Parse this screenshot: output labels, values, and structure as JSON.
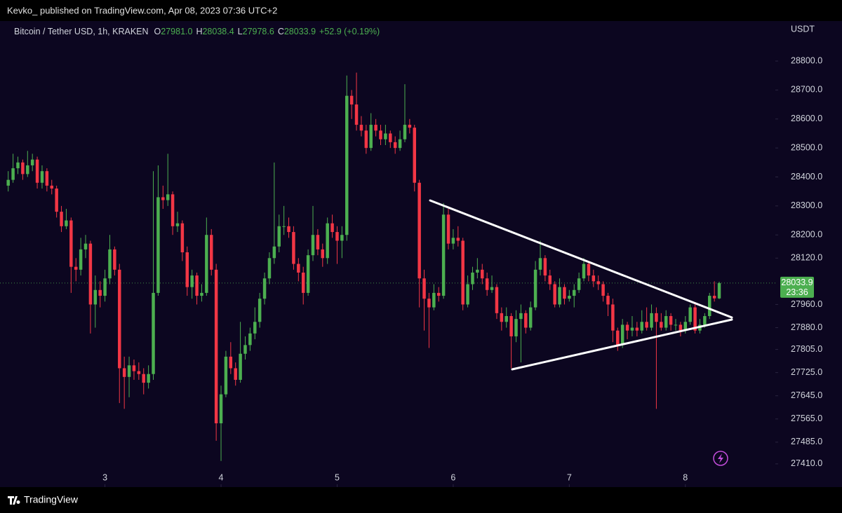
{
  "top_bar": {
    "text": "Kevko_ published on TradingView.com, Apr 08, 2023 07:36 UTC+2"
  },
  "footer": {
    "logo": "TradingView"
  },
  "chart_data": {
    "type": "candlestick",
    "title": "Bitcoin / Tether USD, 1h, KRAKEN",
    "ohlc_header": [
      {
        "key": "O",
        "label": "27981.0"
      },
      {
        "key": "H",
        "label": "28038.4"
      },
      {
        "key": "L",
        "label": "27978.6"
      },
      {
        "key": "C",
        "label": "28033.9"
      }
    ],
    "change": "+52.9 (+0.19%)",
    "currency": "USDT",
    "up_color": "#4caf50",
    "down_color": "#f23645",
    "background": "#0c0620",
    "last_price": 28033.9,
    "countdown": "23:36",
    "xlim": [
      -1.7,
      158.6
    ],
    "xticks": [
      {
        "value": 20,
        "label": "3"
      },
      {
        "value": 44,
        "label": "4"
      },
      {
        "value": 68,
        "label": "5"
      },
      {
        "value": 92,
        "label": "6"
      },
      {
        "value": 116,
        "label": "7"
      },
      {
        "value": 140,
        "label": "8"
      }
    ],
    "ylim": [
      27330,
      28938
    ],
    "yticks": [
      {
        "value": 28800,
        "label": "28800.0"
      },
      {
        "value": 28700,
        "label": "28700.0"
      },
      {
        "value": 28600,
        "label": "28600.0"
      },
      {
        "value": 28500,
        "label": "28500.0"
      },
      {
        "value": 28400,
        "label": "28400.0"
      },
      {
        "value": 28300,
        "label": "28300.0"
      },
      {
        "value": 28200,
        "label": "28200.0"
      },
      {
        "value": 28120,
        "label": "28120.0"
      },
      {
        "value": 27960,
        "label": "27960.0"
      },
      {
        "value": 27880,
        "label": "27880.0"
      },
      {
        "value": 27805,
        "label": "27805.0"
      },
      {
        "value": 27725,
        "label": "27725.0"
      },
      {
        "value": 27645,
        "label": "27645.0"
      },
      {
        "value": 27565,
        "label": "27565.0"
      },
      {
        "value": 27485,
        "label": "27485.0"
      },
      {
        "value": 27410,
        "label": "27410.0"
      }
    ],
    "candles": [
      [
        28370,
        28420,
        28350,
        28390
      ],
      [
        28390,
        28480,
        28380,
        28430
      ],
      [
        28430,
        28470,
        28410,
        28450
      ],
      [
        28450,
        28460,
        28390,
        28410
      ],
      [
        28410,
        28490,
        28400,
        28440
      ],
      [
        28440,
        28480,
        28420,
        28460
      ],
      [
        28460,
        28470,
        28360,
        28380
      ],
      [
        28380,
        28440,
        28360,
        28420
      ],
      [
        28420,
        28430,
        28350,
        28370
      ],
      [
        28370,
        28390,
        28340,
        28360
      ],
      [
        28360,
        28370,
        28260,
        28280
      ],
      [
        28280,
        28300,
        28210,
        28230
      ],
      [
        28230,
        28290,
        28220,
        28250
      ],
      [
        28250,
        28260,
        28000,
        28090
      ],
      [
        28090,
        28120,
        28040,
        28080
      ],
      [
        28080,
        28190,
        28060,
        28150
      ],
      [
        28150,
        28200,
        28120,
        28170
      ],
      [
        28170,
        28180,
        27860,
        27960
      ],
      [
        27960,
        28060,
        27880,
        28010
      ],
      [
        28010,
        28040,
        27950,
        27990
      ],
      [
        27990,
        28080,
        27970,
        28050
      ],
      [
        28050,
        28200,
        28030,
        28150
      ],
      [
        28150,
        28160,
        28060,
        28080
      ],
      [
        28080,
        28100,
        27620,
        27740
      ],
      [
        27740,
        27780,
        27600,
        27710
      ],
      [
        27710,
        27780,
        27640,
        27750
      ],
      [
        27750,
        27770,
        27700,
        27730
      ],
      [
        27730,
        27760,
        27700,
        27720
      ],
      [
        27720,
        27740,
        27650,
        27690
      ],
      [
        27690,
        27750,
        27670,
        27720
      ],
      [
        27720,
        28420,
        27700,
        28000
      ],
      [
        28000,
        28440,
        27990,
        28330
      ],
      [
        28330,
        28370,
        28290,
        28320
      ],
      [
        28320,
        28480,
        28300,
        28340
      ],
      [
        28340,
        28350,
        28200,
        28230
      ],
      [
        28230,
        28280,
        28210,
        28240
      ],
      [
        28240,
        28250,
        28110,
        28140
      ],
      [
        28140,
        28160,
        27990,
        28020
      ],
      [
        28020,
        28080,
        27980,
        28060
      ],
      [
        28060,
        28070,
        27960,
        27990
      ],
      [
        27990,
        28030,
        27970,
        28000
      ],
      [
        28000,
        28260,
        27990,
        28200
      ],
      [
        28200,
        28220,
        28060,
        28080
      ],
      [
        28080,
        28100,
        27490,
        27550
      ],
      [
        27550,
        27680,
        27420,
        27650
      ],
      [
        27650,
        27800,
        27640,
        27780
      ],
      [
        27780,
        27830,
        27720,
        27740
      ],
      [
        27740,
        27760,
        27680,
        27700
      ],
      [
        27700,
        27900,
        27690,
        27790
      ],
      [
        27790,
        27850,
        27770,
        27820
      ],
      [
        27820,
        27880,
        27800,
        27860
      ],
      [
        27860,
        27950,
        27840,
        27900
      ],
      [
        27900,
        28000,
        27880,
        27980
      ],
      [
        27980,
        28070,
        27960,
        28050
      ],
      [
        28050,
        28140,
        28030,
        28120
      ],
      [
        28120,
        28450,
        28100,
        28160
      ],
      [
        28160,
        28270,
        28140,
        28230
      ],
      [
        28230,
        28300,
        28200,
        28230
      ],
      [
        28230,
        28260,
        28190,
        28210
      ],
      [
        28210,
        28230,
        28080,
        28100
      ],
      [
        28100,
        28120,
        28040,
        28070
      ],
      [
        28070,
        28090,
        27960,
        28000
      ],
      [
        28000,
        28150,
        27990,
        28130
      ],
      [
        28130,
        28300,
        28110,
        28200
      ],
      [
        28200,
        28220,
        28130,
        28150
      ],
      [
        28150,
        28170,
        28090,
        28120
      ],
      [
        28120,
        28260,
        28100,
        28240
      ],
      [
        28240,
        28270,
        28190,
        28210
      ],
      [
        28210,
        28230,
        28100,
        28180
      ],
      [
        28180,
        28230,
        28120,
        28200
      ],
      [
        28200,
        28750,
        28180,
        28680
      ],
      [
        28680,
        28700,
        28600,
        28650
      ],
      [
        28650,
        28760,
        28560,
        28580
      ],
      [
        28580,
        28610,
        28540,
        28560
      ],
      [
        28560,
        28580,
        28480,
        28500
      ],
      [
        28500,
        28620,
        28490,
        28580
      ],
      [
        28580,
        28600,
        28540,
        28560
      ],
      [
        28560,
        28580,
        28510,
        28530
      ],
      [
        28530,
        28580,
        28510,
        28550
      ],
      [
        28550,
        28560,
        28500,
        28520
      ],
      [
        28520,
        28540,
        28480,
        28500
      ],
      [
        28500,
        28560,
        28490,
        28530
      ],
      [
        28530,
        28720,
        28520,
        28580
      ],
      [
        28580,
        28600,
        28550,
        28570
      ],
      [
        28570,
        28580,
        28350,
        28380
      ],
      [
        28380,
        28390,
        27950,
        28050
      ],
      [
        28050,
        28080,
        27870,
        27980
      ],
      [
        27980,
        28000,
        27810,
        27950
      ],
      [
        27950,
        28030,
        27940,
        28000
      ],
      [
        28000,
        28020,
        27970,
        27990
      ],
      [
        27990,
        28310,
        27980,
        28270
      ],
      [
        28270,
        28290,
        28150,
        28170
      ],
      [
        28170,
        28220,
        28150,
        28190
      ],
      [
        28190,
        28230,
        28160,
        28180
      ],
      [
        28180,
        28190,
        27940,
        27960
      ],
      [
        27960,
        28060,
        27950,
        28030
      ],
      [
        28030,
        28090,
        28010,
        28070
      ],
      [
        28070,
        28120,
        28050,
        28080
      ],
      [
        28080,
        28100,
        28030,
        28050
      ],
      [
        28050,
        28070,
        27990,
        28010
      ],
      [
        28010,
        28060,
        28000,
        28020
      ],
      [
        28020,
        28030,
        27910,
        27930
      ],
      [
        27930,
        27950,
        27870,
        27900
      ],
      [
        27900,
        27950,
        27880,
        27920
      ],
      [
        27920,
        27930,
        27740,
        27850
      ],
      [
        27850,
        27940,
        27830,
        27910
      ],
      [
        27910,
        27960,
        27760,
        27930
      ],
      [
        27930,
        27940,
        27860,
        27880
      ],
      [
        27880,
        27970,
        27870,
        27950
      ],
      [
        27950,
        28110,
        27940,
        28080
      ],
      [
        28080,
        28180,
        28060,
        28120
      ],
      [
        28120,
        28130,
        28040,
        28060
      ],
      [
        28060,
        28080,
        28010,
        28030
      ],
      [
        28030,
        28040,
        27950,
        27960
      ],
      [
        27960,
        28050,
        27950,
        28020
      ],
      [
        28020,
        28030,
        27960,
        27980
      ],
      [
        27980,
        28010,
        27970,
        27990
      ],
      [
        27990,
        28030,
        27950,
        28010
      ],
      [
        28010,
        28070,
        28000,
        28050
      ],
      [
        28050,
        28120,
        28040,
        28100
      ],
      [
        28100,
        28110,
        28040,
        28060
      ],
      [
        28060,
        28080,
        28020,
        28040
      ],
      [
        28040,
        28060,
        28010,
        28030
      ],
      [
        28030,
        28040,
        27970,
        27990
      ],
      [
        27990,
        28000,
        27920,
        27960
      ],
      [
        27960,
        27980,
        27830,
        27870
      ],
      [
        27870,
        27880,
        27800,
        27820
      ],
      [
        27820,
        27910,
        27810,
        27890
      ],
      [
        27890,
        27900,
        27840,
        27870
      ],
      [
        27870,
        27920,
        27850,
        27880
      ],
      [
        27880,
        27900,
        27850,
        27870
      ],
      [
        27870,
        27940,
        27860,
        27900
      ],
      [
        27900,
        27950,
        27870,
        27880
      ],
      [
        27880,
        27960,
        27870,
        27930
      ],
      [
        27930,
        27950,
        27600,
        27900
      ],
      [
        27900,
        27930,
        27870,
        27880
      ],
      [
        27880,
        27940,
        27870,
        27920
      ],
      [
        27920,
        27930,
        27870,
        27890
      ],
      [
        27890,
        27910,
        27870,
        27890
      ],
      [
        27890,
        27900,
        27850,
        27870
      ],
      [
        27870,
        27920,
        27860,
        27900
      ],
      [
        27900,
        27960,
        27890,
        27950
      ],
      [
        27950,
        27960,
        27860,
        27870
      ],
      [
        27870,
        27910,
        27860,
        27890
      ],
      [
        27890,
        27930,
        27880,
        27920
      ],
      [
        27920,
        28000,
        27910,
        27990
      ],
      [
        27990,
        28040,
        27970,
        27981.0
      ],
      [
        27981.0,
        28038.4,
        27978.6,
        28033.9
      ]
    ]
  }
}
